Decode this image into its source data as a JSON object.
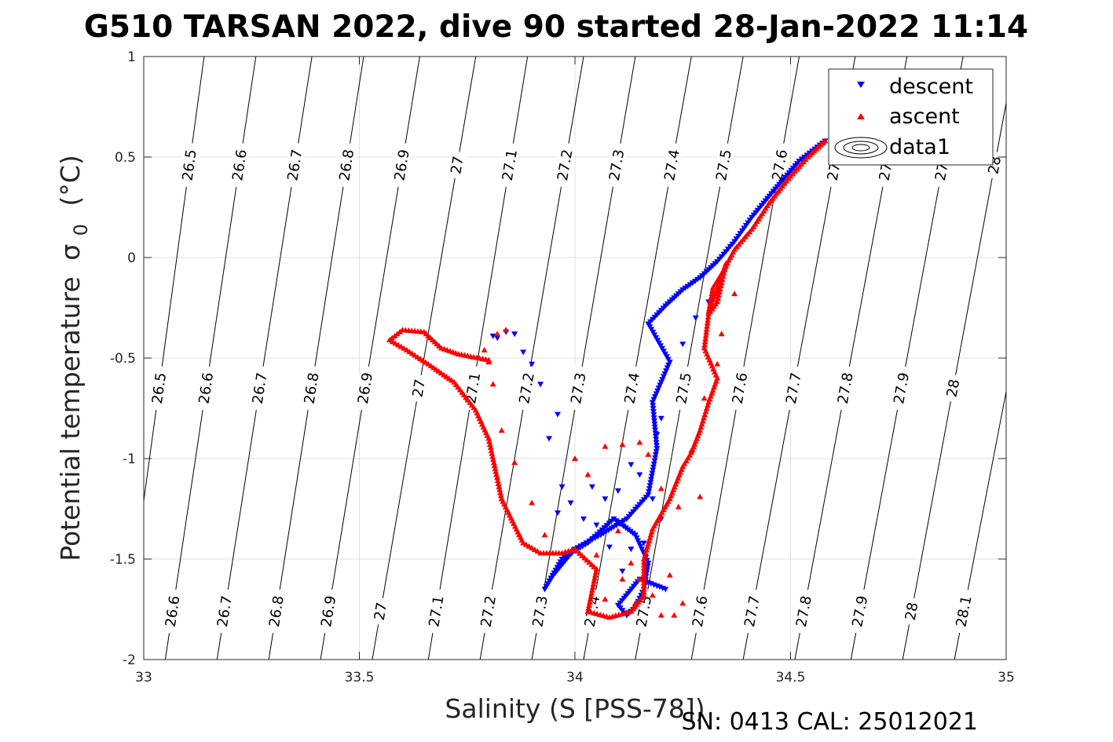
{
  "chart_data": {
    "type": "scatter",
    "title": "G510 TARSAN 2022, dive 90 started 28-Jan-2022 11:14",
    "xlabel": "Salinity (S [PSS-78])",
    "ylabel": "Potential temperature",
    "ylabel_symbol": "σ",
    "ylabel_sub": "0",
    "ylabel_unit": "(°C)",
    "xlim": [
      33,
      35
    ],
    "ylim": [
      -2,
      1
    ],
    "xticks": [
      33,
      33.5,
      34,
      34.5,
      35
    ],
    "xtick_labels": [
      "33",
      "33.5",
      "34",
      "34.5",
      "35"
    ],
    "yticks": [
      -2,
      -1.5,
      -1,
      -0.5,
      0,
      0.5,
      1
    ],
    "ytick_labels": [
      "-2",
      "-1.5",
      "-1",
      "-0.5",
      "0",
      "0.5",
      "1"
    ],
    "grid": true,
    "legend_position": "top-right",
    "footer": "SN: 0413  CAL: 25012021",
    "colors": {
      "descent": "#0000ff",
      "ascent": "#ff0000",
      "contour": "#000000",
      "grid": "#e0e0e0",
      "axis": "#262626"
    },
    "series": [
      {
        "name": "descent",
        "marker": "triangle-down",
        "path": [
          [
            34.58,
            0.58
          ],
          [
            34.52,
            0.48
          ],
          [
            34.46,
            0.33
          ],
          [
            34.41,
            0.2
          ],
          [
            34.37,
            0.08
          ],
          [
            34.33,
            -0.02
          ],
          [
            34.29,
            -0.1
          ],
          [
            34.25,
            -0.16
          ],
          [
            34.21,
            -0.24
          ],
          [
            34.17,
            -0.33
          ],
          [
            34.22,
            -0.52
          ],
          [
            34.18,
            -0.72
          ],
          [
            34.19,
            -0.95
          ],
          [
            34.17,
            -1.18
          ],
          [
            34.12,
            -1.3
          ],
          [
            34.06,
            -1.38
          ],
          [
            34.0,
            -1.45
          ],
          [
            33.95,
            -1.58
          ],
          [
            33.93,
            -1.65
          ],
          [
            33.97,
            -1.5
          ],
          [
            34.03,
            -1.42
          ],
          [
            34.09,
            -1.3
          ],
          [
            34.14,
            -1.38
          ],
          [
            34.17,
            -1.52
          ],
          [
            34.16,
            -1.65
          ],
          [
            34.14,
            -1.74
          ],
          [
            34.12,
            -1.78
          ],
          [
            34.1,
            -1.73
          ],
          [
            34.15,
            -1.6
          ],
          [
            34.21,
            -1.65
          ]
        ],
        "extra_points": [
          [
            33.81,
            -0.39
          ],
          [
            33.82,
            -0.4
          ],
          [
            33.84,
            -0.37
          ],
          [
            33.86,
            -0.38
          ],
          [
            33.88,
            -0.47
          ],
          [
            33.9,
            -0.53
          ],
          [
            33.92,
            -0.63
          ],
          [
            33.96,
            -0.78
          ],
          [
            33.94,
            -0.9
          ],
          [
            33.97,
            -1.14
          ],
          [
            33.96,
            -1.27
          ],
          [
            33.99,
            -1.22
          ],
          [
            34.04,
            -1.14
          ],
          [
            34.02,
            -1.3
          ],
          [
            34.05,
            -1.33
          ],
          [
            34.07,
            -1.2
          ],
          [
            34.1,
            -1.16
          ],
          [
            34.13,
            -1.03
          ],
          [
            34.15,
            -1.08
          ],
          [
            34.18,
            -1.2
          ],
          [
            34.13,
            -1.45
          ],
          [
            34.08,
            -1.44
          ],
          [
            34.11,
            -1.56
          ],
          [
            34.16,
            -1.42
          ],
          [
            34.19,
            -0.88
          ],
          [
            34.2,
            -0.8
          ],
          [
            34.25,
            -0.43
          ],
          [
            34.28,
            -0.3
          ],
          [
            34.31,
            -0.22
          ],
          [
            34.2,
            -1.3
          ]
        ]
      },
      {
        "name": "ascent",
        "marker": "triangle-up",
        "path": [
          [
            34.58,
            0.58
          ],
          [
            34.54,
            0.5
          ],
          [
            34.49,
            0.38
          ],
          [
            34.45,
            0.27
          ],
          [
            34.41,
            0.14
          ],
          [
            34.37,
            0.04
          ],
          [
            34.34,
            -0.08
          ],
          [
            34.32,
            -0.15
          ],
          [
            34.31,
            -0.27
          ],
          [
            34.35,
            -0.03
          ],
          [
            34.33,
            -0.22
          ],
          [
            34.31,
            -0.28
          ],
          [
            34.3,
            -0.45
          ],
          [
            34.33,
            -0.6
          ],
          [
            34.31,
            -0.72
          ],
          [
            34.29,
            -0.86
          ],
          [
            34.27,
            -0.97
          ],
          [
            34.25,
            -1.04
          ],
          [
            34.22,
            -1.2
          ],
          [
            34.18,
            -1.35
          ],
          [
            34.16,
            -1.5
          ],
          [
            34.16,
            -1.68
          ],
          [
            34.13,
            -1.76
          ],
          [
            34.08,
            -1.79
          ],
          [
            34.03,
            -1.76
          ],
          [
            34.05,
            -1.55
          ],
          [
            34.0,
            -1.45
          ],
          [
            33.97,
            -1.47
          ],
          [
            33.92,
            -1.47
          ],
          [
            33.88,
            -1.42
          ],
          [
            33.83,
            -1.2
          ],
          [
            33.8,
            -0.9
          ],
          [
            33.77,
            -0.76
          ],
          [
            33.72,
            -0.62
          ],
          [
            33.66,
            -0.53
          ],
          [
            33.61,
            -0.46
          ],
          [
            33.57,
            -0.41
          ],
          [
            33.6,
            -0.36
          ],
          [
            33.65,
            -0.37
          ],
          [
            33.69,
            -0.45
          ],
          [
            33.73,
            -0.48
          ],
          [
            33.8,
            -0.51
          ]
        ],
        "extra_points": [
          [
            33.8,
            -0.52
          ],
          [
            33.79,
            -0.46
          ],
          [
            33.82,
            -0.38
          ],
          [
            33.84,
            -0.36
          ],
          [
            33.81,
            -0.63
          ],
          [
            33.83,
            -0.86
          ],
          [
            33.86,
            -1.02
          ],
          [
            33.9,
            -1.22
          ],
          [
            33.93,
            -1.38
          ],
          [
            34.0,
            -1.0
          ],
          [
            34.03,
            -1.08
          ],
          [
            34.07,
            -0.94
          ],
          [
            34.11,
            -0.93
          ],
          [
            34.15,
            -0.92
          ],
          [
            34.17,
            -0.98
          ],
          [
            34.2,
            -1.15
          ],
          [
            34.24,
            -1.24
          ],
          [
            34.29,
            -1.19
          ],
          [
            34.27,
            -0.96
          ],
          [
            34.3,
            -0.7
          ],
          [
            34.33,
            -0.53
          ],
          [
            34.34,
            -0.38
          ],
          [
            34.37,
            -0.18
          ],
          [
            34.05,
            -1.48
          ],
          [
            34.1,
            -1.36
          ],
          [
            34.13,
            -1.52
          ],
          [
            34.15,
            -1.6
          ],
          [
            34.18,
            -1.68
          ],
          [
            34.2,
            -1.78
          ],
          [
            34.23,
            -1.78
          ],
          [
            34.25,
            -1.72
          ],
          [
            34.22,
            -1.58
          ],
          [
            34.07,
            -1.7
          ],
          [
            34.11,
            -1.6
          ],
          [
            34.14,
            -1.72
          ]
        ]
      }
    ],
    "contours": {
      "name": "data1",
      "levels": [
        26.5,
        26.6,
        26.7,
        26.8,
        26.9,
        27,
        27.1,
        27.2,
        27.3,
        27.4,
        27.5,
        27.6,
        27.7,
        27.8,
        27.9,
        28,
        28.1
      ],
      "level_labels": [
        "26.5",
        "26.6",
        "26.7",
        "26.8",
        "26.9",
        "27",
        "27.1",
        "27.2",
        "27.3",
        "27.4",
        "27.5",
        "27.6",
        "27.7",
        "27.8",
        "27.9",
        "28",
        "28.1"
      ],
      "salinity_at_top": [
        33.14,
        33.26,
        33.39,
        33.51,
        33.64,
        33.77,
        33.89,
        34.02,
        34.14,
        34.27,
        34.39,
        34.52,
        34.65,
        34.77,
        34.9,
        35.02,
        35.15
      ],
      "salinity_at_bottom": [
        32.95,
        33.05,
        33.17,
        33.29,
        33.41,
        33.53,
        33.66,
        33.78,
        33.9,
        34.02,
        34.14,
        34.27,
        34.39,
        34.51,
        34.64,
        34.76,
        34.88
      ]
    }
  }
}
